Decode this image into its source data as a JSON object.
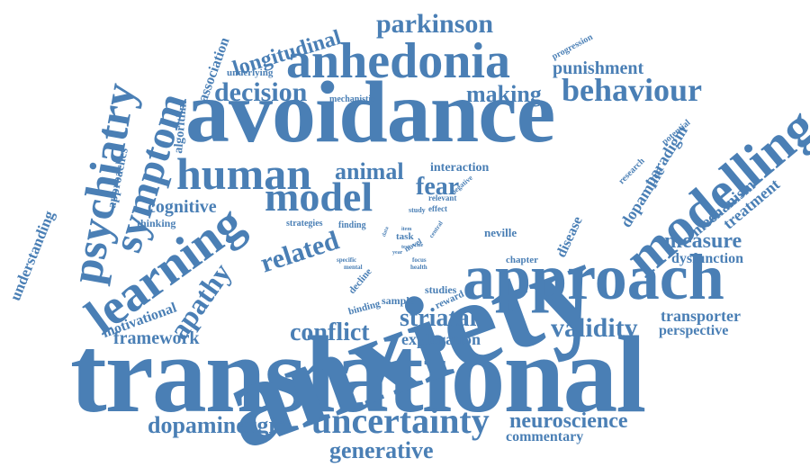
{
  "colors": {
    "word": "#4a7fb5",
    "background": "#ffffff"
  },
  "words": [
    {
      "id": "translational",
      "text": "translational"
    },
    {
      "id": "anxiety",
      "text": "anxiety"
    },
    {
      "id": "avoidance",
      "text": "avoidance"
    },
    {
      "id": "approach",
      "text": "approach"
    },
    {
      "id": "anhedonia",
      "text": "anhedonia"
    },
    {
      "id": "modelling",
      "text": "modelling"
    },
    {
      "id": "learning",
      "text": "learning"
    },
    {
      "id": "psychiatry",
      "text": "psychiatry"
    },
    {
      "id": "symptom",
      "text": "symptom"
    },
    {
      "id": "human",
      "text": "human"
    },
    {
      "id": "model",
      "text": "model"
    },
    {
      "id": "uncertainty",
      "text": "uncertainty"
    },
    {
      "id": "behaviour",
      "text": "behaviour"
    },
    {
      "id": "decision",
      "text": "decision"
    },
    {
      "id": "making",
      "text": "making"
    },
    {
      "id": "parkinson",
      "text": "parkinson"
    },
    {
      "id": "longitudinal",
      "text": "longitudinal"
    },
    {
      "id": "validity",
      "text": "validity"
    },
    {
      "id": "striatal",
      "text": "striatal"
    },
    {
      "id": "conflict",
      "text": "conflict"
    },
    {
      "id": "dopaminergic",
      "text": "dopaminergic"
    },
    {
      "id": "generative",
      "text": "generative"
    },
    {
      "id": "neuroscience",
      "text": "neuroscience"
    },
    {
      "id": "measure",
      "text": "measure"
    },
    {
      "id": "apathy",
      "text": "apathy"
    },
    {
      "id": "related",
      "text": "related"
    },
    {
      "id": "animal",
      "text": "animal"
    },
    {
      "id": "fear",
      "text": "fear"
    },
    {
      "id": "cognitive",
      "text": "cognitive"
    },
    {
      "id": "punishment",
      "text": "punishment"
    },
    {
      "id": "framework",
      "text": "framework"
    },
    {
      "id": "exploration",
      "text": "exploration"
    },
    {
      "id": "transporter",
      "text": "transporter"
    },
    {
      "id": "perspective",
      "text": "perspective"
    },
    {
      "id": "commentary",
      "text": "commentary"
    },
    {
      "id": "dysfunction",
      "text": "dysfunction"
    },
    {
      "id": "mechanism",
      "text": "mechanism"
    },
    {
      "id": "treatment",
      "text": "treatment"
    },
    {
      "id": "dopamine",
      "text": "dopamine"
    },
    {
      "id": "paradigm",
      "text": "paradigm"
    },
    {
      "id": "interaction",
      "text": "interaction"
    },
    {
      "id": "motivational",
      "text": "motivational"
    },
    {
      "id": "understanding",
      "text": "understanding"
    },
    {
      "id": "approaches",
      "text": "approaches"
    },
    {
      "id": "algorithm",
      "text": "algorithm"
    },
    {
      "id": "association",
      "text": "association"
    },
    {
      "id": "underlying",
      "text": "underlying"
    },
    {
      "id": "mechanistic",
      "text": "mechanistic"
    },
    {
      "id": "thinking",
      "text": "thinking"
    },
    {
      "id": "studies",
      "text": "studies"
    },
    {
      "id": "sample",
      "text": "sample"
    },
    {
      "id": "chapter",
      "text": "chapter"
    },
    {
      "id": "disease",
      "text": "disease"
    },
    {
      "id": "neville",
      "text": "neville"
    },
    {
      "id": "progression",
      "text": "progression"
    },
    {
      "id": "research",
      "text": "research"
    },
    {
      "id": "potential",
      "text": "potential"
    },
    {
      "id": "strategies",
      "text": "strategies"
    },
    {
      "id": "finding",
      "text": "finding"
    },
    {
      "id": "task",
      "text": "task"
    },
    {
      "id": "novel",
      "text": "novel"
    },
    {
      "id": "relevant",
      "text": "relevant"
    },
    {
      "id": "effect",
      "text": "effect"
    },
    {
      "id": "study",
      "text": "study"
    },
    {
      "id": "negative",
      "text": "negative"
    },
    {
      "id": "binding",
      "text": "binding"
    },
    {
      "id": "decline",
      "text": "decline"
    },
    {
      "id": "reward",
      "text": "reward"
    },
    {
      "id": "specific",
      "text": "specific"
    },
    {
      "id": "mental",
      "text": "mental"
    },
    {
      "id": "focus",
      "text": "focus"
    },
    {
      "id": "health",
      "text": "health"
    },
    {
      "id": "central",
      "text": "central"
    },
    {
      "id": "item",
      "text": "item"
    },
    {
      "id": "scale",
      "text": "scale"
    },
    {
      "id": "year",
      "text": "year"
    },
    {
      "id": "test",
      "text": "test"
    },
    {
      "id": "data",
      "text": "data"
    }
  ]
}
